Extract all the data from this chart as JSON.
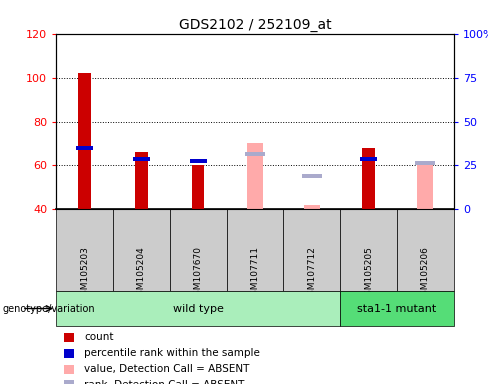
{
  "title": "GDS2102 / 252109_at",
  "samples": [
    "GSM105203",
    "GSM105204",
    "GSM107670",
    "GSM107711",
    "GSM107712",
    "GSM105205",
    "GSM105206"
  ],
  "groups": {
    "wild type": [
      "GSM105203",
      "GSM105204",
      "GSM107670",
      "GSM107711",
      "GSM107712"
    ],
    "sta1-1 mutant": [
      "GSM105205",
      "GSM105206"
    ]
  },
  "ylim_left": [
    40,
    120
  ],
  "ylim_right": [
    0,
    100
  ],
  "yticks_left": [
    40,
    60,
    80,
    100,
    120
  ],
  "yticks_right": [
    0,
    25,
    50,
    75,
    100
  ],
  "ytick_labels_right": [
    "0",
    "25",
    "50",
    "75",
    "100%"
  ],
  "count_values": [
    102,
    66,
    60,
    null,
    null,
    68,
    null
  ],
  "rank_values": [
    68,
    63,
    62,
    null,
    null,
    63,
    null
  ],
  "absent_value_values": [
    null,
    null,
    null,
    70,
    42,
    null,
    60
  ],
  "absent_rank_values": [
    null,
    null,
    null,
    65,
    55,
    null,
    61
  ],
  "colors": {
    "count": "#cc0000",
    "rank": "#0000cc",
    "absent_value": "#ffaaaa",
    "absent_rank": "#aaaacc",
    "wildtype_bg": "#aaeebb",
    "mutant_bg": "#55dd77",
    "label_area_bg": "#cccccc"
  },
  "legend_items": [
    {
      "label": "count",
      "color": "#cc0000"
    },
    {
      "label": "percentile rank within the sample",
      "color": "#0000cc"
    },
    {
      "label": "value, Detection Call = ABSENT",
      "color": "#ffaaaa"
    },
    {
      "label": "rank, Detection Call = ABSENT",
      "color": "#aaaacc"
    }
  ]
}
